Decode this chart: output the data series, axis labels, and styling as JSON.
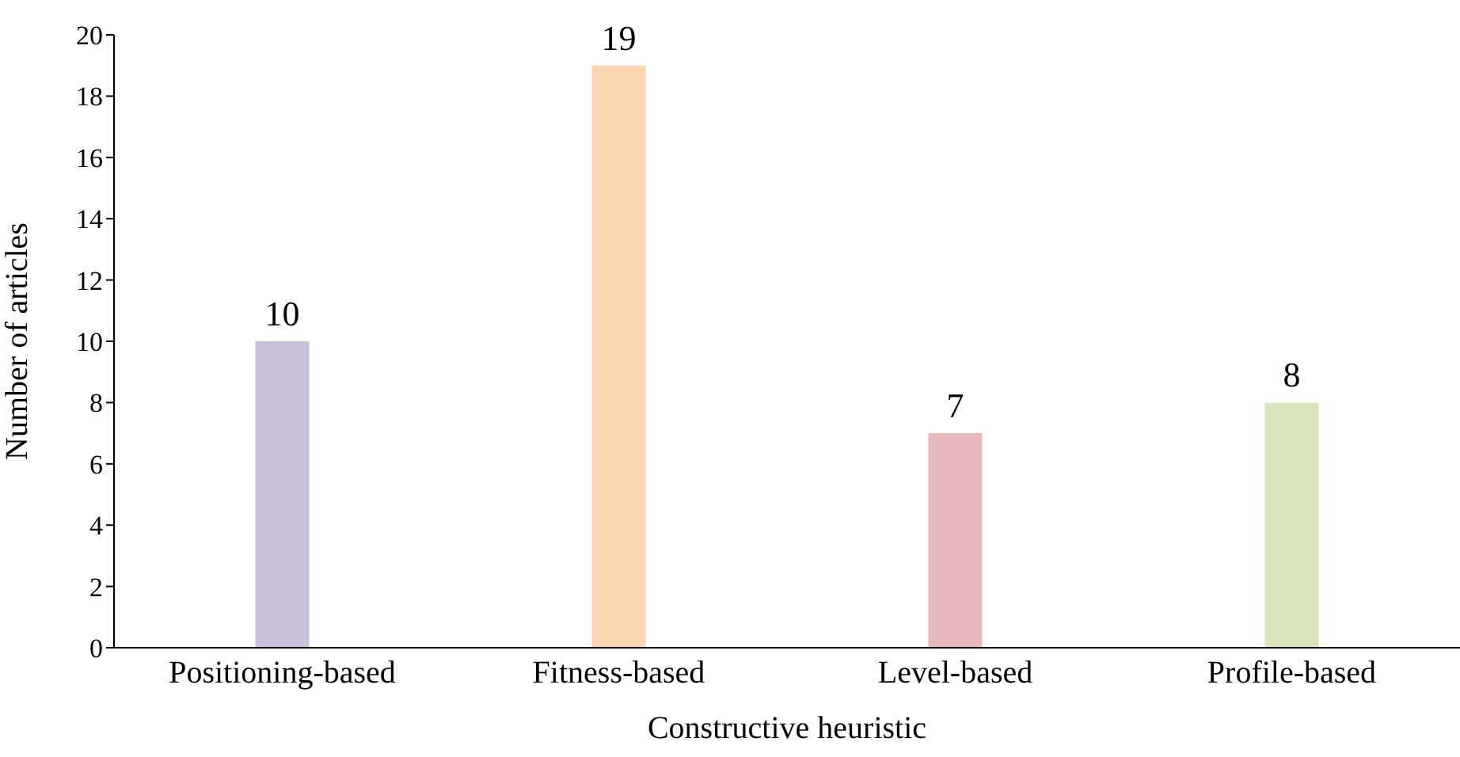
{
  "chart_data": {
    "type": "bar",
    "xlabel": "Constructive heuristic",
    "ylabel": "Number of articles",
    "categories": [
      "Positioning-based",
      "Fitness-based",
      "Level-based",
      "Profile-based"
    ],
    "values": [
      10,
      19,
      7,
      8
    ],
    "colors": [
      "#c9c1dc",
      "#fbd4b4",
      "#e6b9b8",
      "#d8e4bc"
    ],
    "ylim": [
      0,
      20
    ],
    "yticks": [
      0,
      2,
      4,
      6,
      8,
      10,
      12,
      14,
      16,
      18,
      20
    ],
    "grid": false,
    "legend": false,
    "data_labels": true
  }
}
